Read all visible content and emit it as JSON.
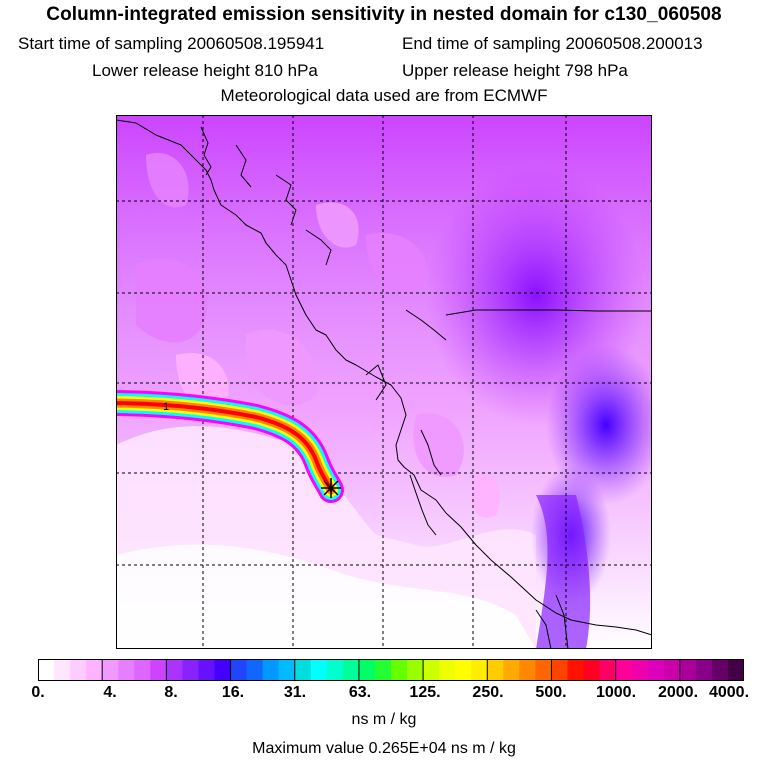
{
  "header": {
    "title": "Column-integrated emission sensitivity in nested domain for c130_060508",
    "start_time": "Start time of sampling 20060508.195941",
    "end_time": "End time of sampling 20060508.200013",
    "lower_height": "Lower release height  810 hPa",
    "upper_height": "Upper release height  798 hPa",
    "met_data": "Meteorological data used are from ECMWF"
  },
  "map": {
    "release_marker_label": "1",
    "plume_color_stops": [
      "#ff00ff",
      "#00ffff",
      "#ffff00",
      "#ff8800",
      "#ff0000"
    ]
  },
  "colorbar": {
    "ticks": [
      "0.",
      "4.",
      "8.",
      "16.",
      "31.",
      "63.",
      "125.",
      "250.",
      "500.",
      "1000.",
      "2000.",
      "4000."
    ],
    "colors": [
      "#ffffff",
      "#ffe6ff",
      "#ffccff",
      "#ffb3ff",
      "#f099ff",
      "#e67fff",
      "#dd66ff",
      "#cc44ff",
      "#aa33ff",
      "#8822ff",
      "#6611ff",
      "#4400ff",
      "#2244ff",
      "#1166ff",
      "#0099ff",
      "#00bbff",
      "#00dddd",
      "#00ffff",
      "#00ffcc",
      "#00ff99",
      "#00ff66",
      "#22ff33",
      "#66ff00",
      "#99ff00",
      "#ccff00",
      "#eeff00",
      "#ffff00",
      "#ffee00",
      "#ffcc00",
      "#ffaa00",
      "#ff8800",
      "#ff6600",
      "#ff4400",
      "#ff1100",
      "#ff0022",
      "#ff0066",
      "#ff0099",
      "#ee00aa",
      "#dd00bb",
      "#cc00aa",
      "#aa0099",
      "#880088",
      "#660066",
      "#440044"
    ],
    "units": "ns m / kg",
    "max_value": "Maximum value  0.265E+04 ns m / kg"
  }
}
